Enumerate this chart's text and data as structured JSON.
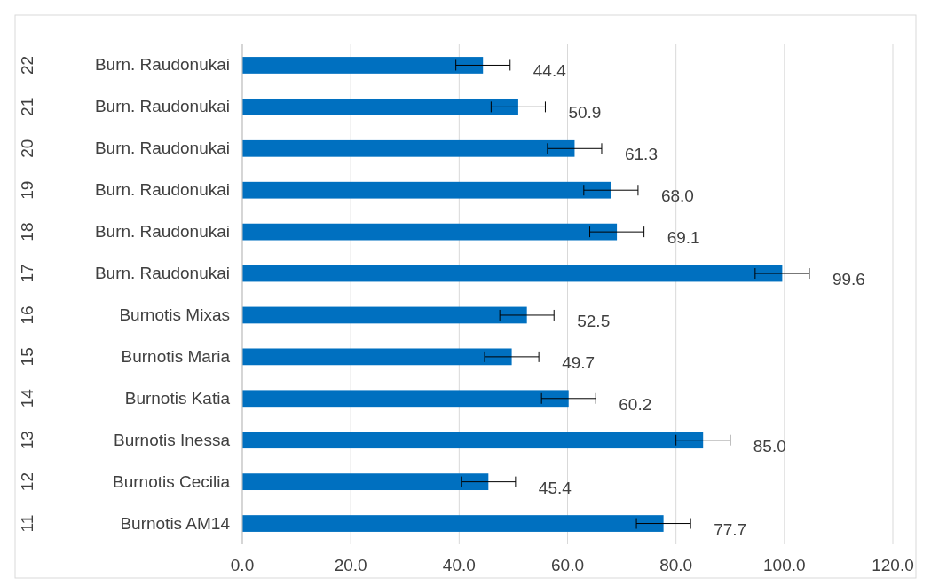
{
  "chart_data": {
    "type": "bar",
    "orientation": "horizontal",
    "categories": [
      "Burn. Raudonukai",
      "Burn. Raudonukai",
      "Burn. Raudonukai",
      "Burn. Raudonukai",
      "Burn. Raudonukai",
      "Burn. Raudonukai",
      "Burnotis Mixas",
      "Burnotis Maria",
      "Burnotis Katia",
      "Burnotis Inessa",
      "Burnotis Cecilia",
      "Burnotis AM14"
    ],
    "values": [
      44.4,
      50.9,
      61.3,
      68.0,
      69.1,
      99.6,
      52.5,
      49.7,
      60.2,
      85.0,
      45.4,
      77.7
    ],
    "value_labels": [
      "44.4",
      "50.9",
      "61.3",
      "68.0",
      "69.1",
      "99.6",
      "52.5",
      "49.7",
      "60.2",
      "85.0",
      "45.4",
      "77.7"
    ],
    "errors": [
      5,
      5,
      5,
      5,
      5,
      5,
      5,
      5,
      5,
      5,
      5,
      5
    ],
    "color": "#0070c0",
    "annotations": [
      "22",
      "21",
      "20",
      "19",
      "18",
      "17",
      "16",
      "15",
      "14",
      "13",
      "12",
      "11"
    ],
    "xlim": [
      0,
      120
    ],
    "xticks": [
      {
        "value": 0,
        "label": "0.0"
      },
      {
        "value": 20,
        "label": "20.0"
      },
      {
        "value": 40,
        "label": "40.0"
      },
      {
        "value": 60,
        "label": "60.0"
      },
      {
        "value": 80,
        "label": "80.0"
      },
      {
        "value": 100,
        "label": "100.0"
      },
      {
        "value": 120,
        "label": "120.0"
      }
    ],
    "grid": "x"
  }
}
